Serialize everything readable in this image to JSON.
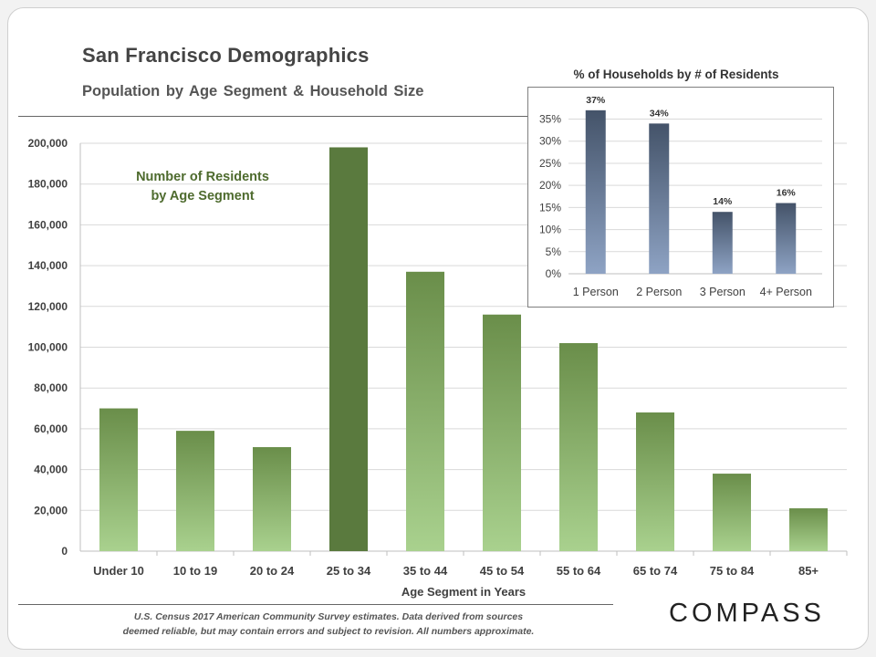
{
  "header": {
    "title": "San Francisco Demographics",
    "subtitle": "Population  by Age Segment & Household  Size"
  },
  "colors": {
    "bar_top": "#6a8e4a",
    "bar_bottom": "#a9d18e",
    "bar_highlight": "#5a7a3e",
    "inset_top": "#445369",
    "inset_bottom": "#8ea3c4",
    "grid": "#d9d9d9",
    "text": "#404040"
  },
  "chart_data": [
    {
      "type": "bar",
      "title": "Number of Residents by Age Segment",
      "title_lines": [
        "Number of Residents",
        "by Age Segment"
      ],
      "xlabel": "Age Segment in Years",
      "ylabel": "",
      "categories": [
        "Under 10",
        "10 to 19",
        "20 to 24",
        "25 to 34",
        "35 to 44",
        "45 to 54",
        "55 to 64",
        "65 to 74",
        "75 to 84",
        "85+"
      ],
      "values": [
        70000,
        59000,
        51000,
        198000,
        137000,
        116000,
        102000,
        68000,
        38000,
        21000
      ],
      "highlight_index": 3,
      "ylim": [
        0,
        200000
      ],
      "yticks": [
        0,
        20000,
        40000,
        60000,
        80000,
        100000,
        120000,
        140000,
        160000,
        180000,
        200000
      ],
      "ytick_labels": [
        "0",
        "20,000",
        "40,000",
        "60,000",
        "80,000",
        "100,000",
        "120,000",
        "140,000",
        "160,000",
        "180,000",
        "200,000"
      ],
      "grid": true
    },
    {
      "type": "bar",
      "title": "% of Households  by # of Residents",
      "categories": [
        "1 Person",
        "2 Person",
        "3 Person",
        "4+ Person"
      ],
      "values": [
        37,
        34,
        14,
        16
      ],
      "value_labels": [
        "37%",
        "34%",
        "14%",
        "16%"
      ],
      "ylim": [
        0,
        38
      ],
      "yticks": [
        0,
        5,
        10,
        15,
        20,
        25,
        30,
        35
      ],
      "ytick_labels": [
        "0%",
        "5%",
        "10%",
        "15%",
        "20%",
        "25%",
        "30%",
        "35%"
      ],
      "grid": true
    }
  ],
  "footer": {
    "source_line1": "U.S. Census 2017 American  Community Survey estimates. Data derived from sources",
    "source_line2": "deemed reliable, but may contain errors and subject to revision.  All numbers approximate.",
    "logo": "COMPASS"
  }
}
